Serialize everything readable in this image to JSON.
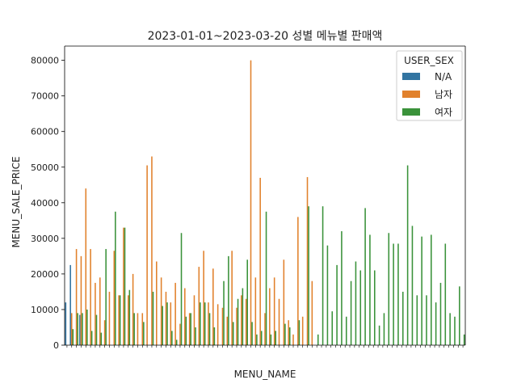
{
  "chart_data": {
    "type": "bar",
    "title": "2023-01-01~2023-03-20 성별 메뉴별 판매액",
    "xlabel": "MENU_NAME",
    "ylabel": "MENU_SALE_PRICE",
    "ylim": [
      0,
      84000
    ],
    "yticks": [
      0,
      10000,
      20000,
      30000,
      40000,
      50000,
      60000,
      70000,
      80000
    ],
    "legend": {
      "title": "USER_SEX",
      "position": "top-right"
    },
    "grid": false,
    "x_tick_labels_note": "",
    "series": [
      {
        "name": "N/A",
        "color": "#3274a1",
        "values": [
          12000,
          22500,
          0,
          8500,
          0,
          0,
          0,
          0,
          0,
          0,
          0,
          0,
          0,
          0,
          0,
          0,
          0,
          0,
          0,
          0,
          0,
          0,
          0,
          0,
          0,
          0,
          0,
          0,
          0,
          0,
          0,
          0,
          0,
          0,
          0,
          0,
          0,
          0,
          0,
          0,
          0,
          0,
          0,
          0,
          0,
          0,
          0,
          0,
          0,
          0,
          0,
          0,
          0,
          0,
          0,
          0,
          0,
          0,
          0,
          0,
          0,
          0,
          0,
          0,
          0,
          0,
          0,
          0,
          0,
          0,
          0,
          0,
          0,
          0,
          0,
          0,
          0,
          0,
          0,
          0,
          0,
          0,
          0,
          0,
          0
        ]
      },
      {
        "name": "남자",
        "color": "#e1812c",
        "values": [
          0,
          9000,
          27000,
          25000,
          44000,
          27000,
          17500,
          19000,
          7000,
          15000,
          26500,
          14000,
          33000,
          14000,
          20000,
          9000,
          9000,
          50500,
          53000,
          23500,
          19000,
          15000,
          12000,
          17500,
          6000,
          16000,
          9000,
          14000,
          22000,
          26500,
          12000,
          21500,
          11500,
          10500,
          8000,
          26500,
          10500,
          14000,
          13000,
          80000,
          19000,
          47000,
          9000,
          16000,
          19000,
          13000,
          24000,
          7000,
          3000,
          36000,
          8000,
          47200,
          18000,
          0,
          0,
          0,
          0,
          0,
          0,
          0,
          0,
          0,
          0,
          0,
          0,
          0,
          0,
          0,
          0,
          0,
          0,
          0,
          0,
          0,
          0,
          0,
          0,
          0,
          0,
          0,
          0,
          0,
          0,
          0,
          0
        ]
      },
      {
        "name": "여자",
        "color": "#3a923a",
        "values": [
          0,
          4500,
          9000,
          9000,
          10000,
          4000,
          8500,
          3500,
          27000,
          0,
          37500,
          14000,
          33000,
          15500,
          9000,
          0,
          6500,
          0,
          15000,
          0,
          11000,
          12000,
          4000,
          1500,
          31500,
          8000,
          9000,
          5000,
          12000,
          12000,
          9000,
          5000,
          0,
          18000,
          25000,
          6500,
          13000,
          16000,
          24000,
          6500,
          3000,
          4000,
          37500,
          3000,
          4000,
          0,
          6000,
          5000,
          0,
          7000,
          0,
          39000,
          0,
          3000,
          39000,
          28000,
          9500,
          22500,
          32000,
          8000,
          18000,
          23500,
          21000,
          38500,
          31000,
          21000,
          5500,
          9000,
          31500,
          28500,
          28500,
          15000,
          50500,
          33500,
          14000,
          30500,
          14000,
          31000,
          12000,
          17500,
          28500,
          9000,
          8000,
          16500,
          3000
        ]
      }
    ]
  }
}
